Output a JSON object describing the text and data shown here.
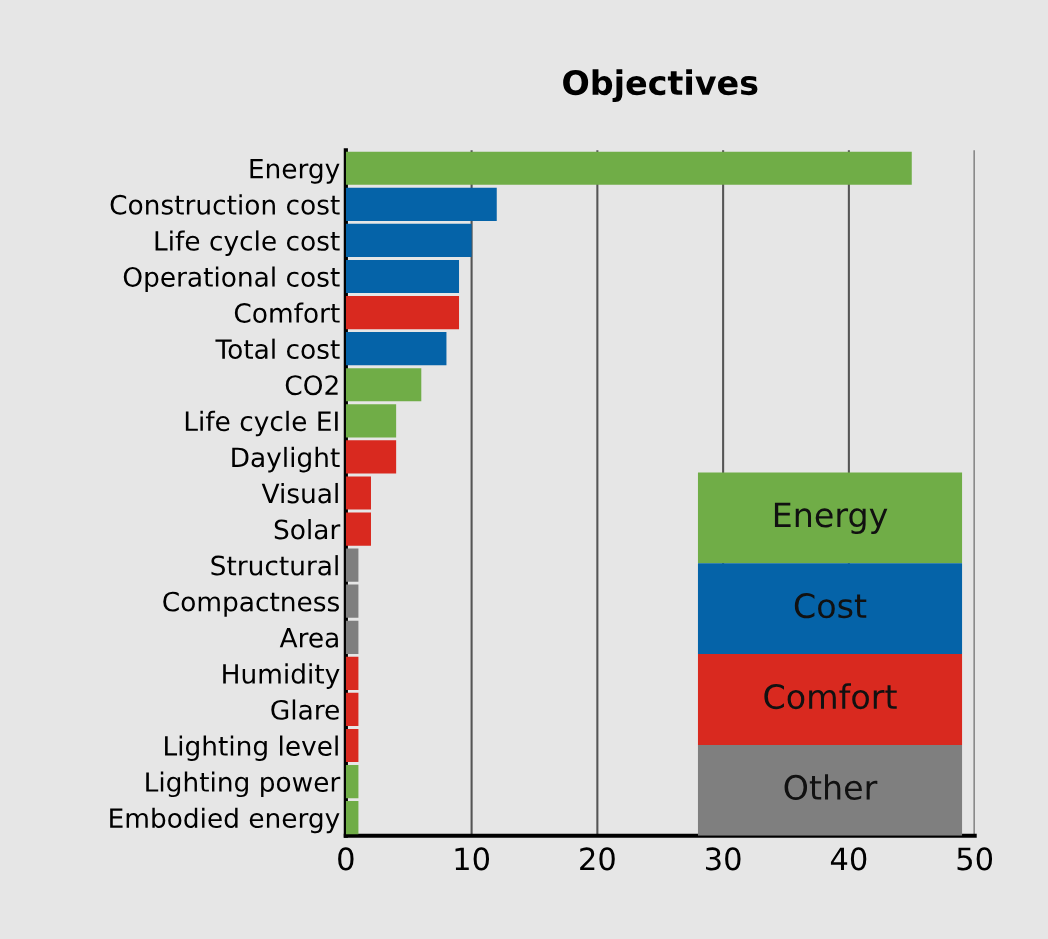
{
  "chart_data": {
    "type": "bar",
    "orientation": "horizontal",
    "title": "Objectives",
    "categories": [
      "Energy",
      "Construction cost",
      "Life cycle cost",
      "Operational cost",
      "Comfort",
      "Total cost",
      "CO2",
      "Life cycle EI",
      "Daylight",
      "Visual",
      "Solar",
      "Structural",
      "Compactness",
      "Area",
      "Humidity",
      "Glare",
      "Lighting level",
      "Lighting power",
      "Embodied energy"
    ],
    "series": [
      {
        "name": "Energy",
        "color": "#70ad47",
        "values": [
          45,
          null,
          null,
          null,
          null,
          null,
          6,
          4,
          null,
          null,
          null,
          null,
          null,
          null,
          null,
          null,
          null,
          1,
          1
        ]
      },
      {
        "name": "Cost",
        "color": "#0563a8",
        "values": [
          null,
          12,
          10,
          9,
          null,
          8,
          null,
          null,
          null,
          null,
          null,
          null,
          null,
          null,
          null,
          null,
          null,
          null,
          null
        ]
      },
      {
        "name": "Comfort",
        "color": "#d9291f",
        "values": [
          null,
          null,
          null,
          null,
          9,
          null,
          null,
          null,
          4,
          2,
          2,
          null,
          null,
          null,
          1,
          1,
          1,
          null,
          null
        ]
      },
      {
        "name": "Other",
        "color": "#7f7f7f",
        "values": [
          null,
          null,
          null,
          null,
          null,
          null,
          null,
          null,
          null,
          null,
          null,
          1,
          1,
          1,
          null,
          null,
          null,
          null,
          null
        ]
      }
    ],
    "xlim": [
      0,
      50
    ],
    "xticks": [
      0,
      10,
      20,
      30,
      40,
      50
    ],
    "grid": "x",
    "legend": "bottom right"
  }
}
